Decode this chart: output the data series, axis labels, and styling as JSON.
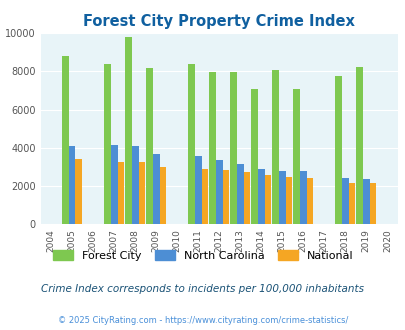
{
  "title": "Forest City Property Crime Index",
  "subtitle": "Crime Index corresponds to incidents per 100,000 inhabitants",
  "footer": "© 2025 CityRating.com - https://www.cityrating.com/crime-statistics/",
  "years": [
    2005,
    2007,
    2008,
    2009,
    2011,
    2012,
    2013,
    2014,
    2015,
    2016,
    2018,
    2019
  ],
  "x_ticks": [
    2004,
    2005,
    2006,
    2007,
    2008,
    2009,
    2010,
    2011,
    2012,
    2013,
    2014,
    2015,
    2016,
    2017,
    2018,
    2019,
    2020
  ],
  "forest_city": [
    8800,
    8400,
    9800,
    8150,
    8400,
    7950,
    7950,
    7100,
    8050,
    7100,
    7750,
    8200
  ],
  "north_carolina": [
    4100,
    4150,
    4100,
    3700,
    3550,
    3350,
    3150,
    2900,
    2800,
    2800,
    2450,
    2350
  ],
  "national": [
    3400,
    3280,
    3250,
    3020,
    2900,
    2840,
    2760,
    2590,
    2480,
    2440,
    2180,
    2150
  ],
  "bar_colors": {
    "forest_city": "#7ec850",
    "north_carolina": "#4d8ed4",
    "national": "#f5a623"
  },
  "ylim": [
    0,
    10000
  ],
  "yticks": [
    0,
    2000,
    4000,
    6000,
    8000,
    10000
  ],
  "bar_width": 0.32,
  "background_color": "#e8f4f8",
  "title_color": "#1060a0",
  "subtitle_color": "#1a5276",
  "footer_color": "#4a90d9",
  "legend_labels": [
    "Forest City",
    "North Carolina",
    "National"
  ]
}
